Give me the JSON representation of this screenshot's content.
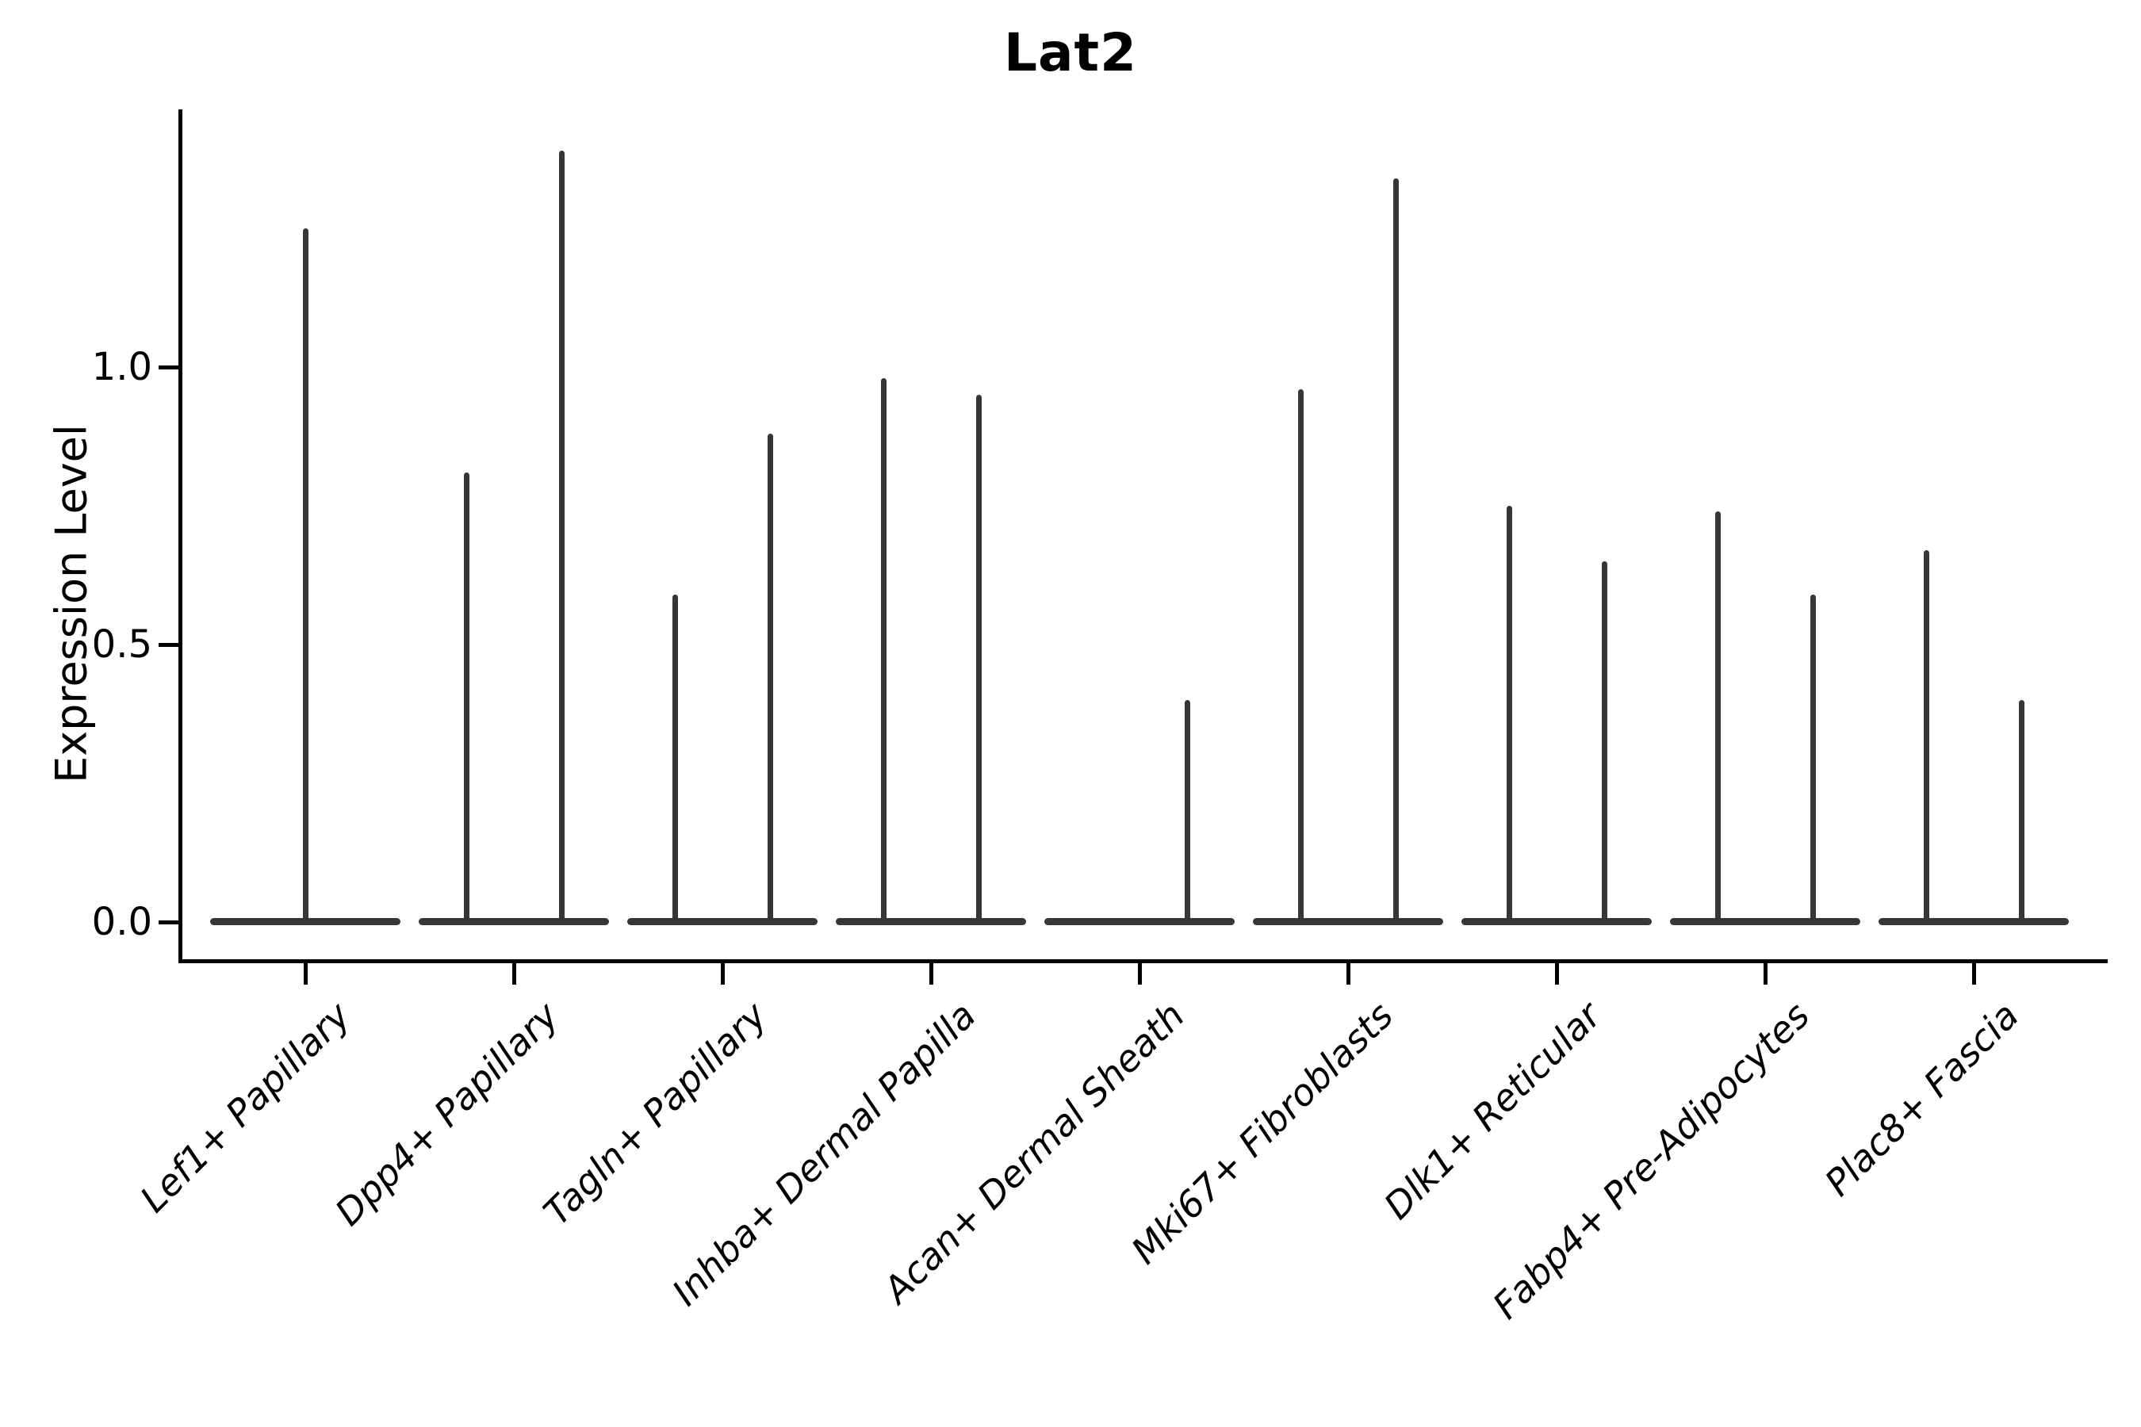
{
  "title": "Lat2",
  "y_axis": {
    "label": "Expression Level",
    "ticks": [
      {
        "label": "1.0",
        "value": 1.0
      },
      {
        "label": "0.5",
        "value": 0.5
      },
      {
        "label": "0.0",
        "value": 0.0
      }
    ]
  },
  "x_axis": {
    "categories": [
      "Lef1+ Papillary",
      "Dpp4+ Papillary",
      "Tagln+ Papillary",
      "Inhba+ Dermal Papilla",
      "Acan+ Dermal Sheath",
      "Mki67+ Fibroblasts",
      "Dlk1+ Reticular",
      "Fabp4+ Pre-Adipocytes",
      "Plac8+ Fascia"
    ]
  },
  "chart_data": {
    "type": "violin",
    "title": "Lat2",
    "xlabel": "",
    "ylabel": "Expression Level",
    "ylim": [
      0,
      1.46
    ],
    "yticks": [
      0.0,
      0.5,
      1.0
    ],
    "grid": false,
    "legend": "none",
    "style": "violins collapse to a wide flat density at 0 with a thin vertical spike up to the maximum expression value; dark gray strokes on white",
    "categories": [
      "Lef1+ Papillary",
      "Dpp4+ Papillary",
      "Tagln+ Papillary",
      "Inhba+ Dermal Papilla",
      "Acan+ Dermal Sheath",
      "Mki67+ Fibroblasts",
      "Dlk1+ Reticular",
      "Fabp4+ Pre-Adipocytes",
      "Plac8+ Fascia"
    ],
    "violins": [
      [
        {
          "position": "center",
          "max_expression": 1.25
        }
      ],
      [
        {
          "position": "left",
          "max_expression": 0.81
        },
        {
          "position": "right",
          "max_expression": 1.39
        }
      ],
      [
        {
          "position": "left",
          "max_expression": 0.59
        },
        {
          "position": "right",
          "max_expression": 0.88
        }
      ],
      [
        {
          "position": "left",
          "max_expression": 0.98
        },
        {
          "position": "right",
          "max_expression": 0.95
        }
      ],
      [
        {
          "position": "right",
          "max_expression": 0.4
        }
      ],
      [
        {
          "position": "left",
          "max_expression": 0.96
        },
        {
          "position": "right",
          "max_expression": 1.34
        }
      ],
      [
        {
          "position": "left",
          "max_expression": 0.75
        },
        {
          "position": "right",
          "max_expression": 0.65
        }
      ],
      [
        {
          "position": "left",
          "max_expression": 0.74
        },
        {
          "position": "right",
          "max_expression": 0.59
        }
      ],
      [
        {
          "position": "left",
          "max_expression": 0.67
        },
        {
          "position": "right",
          "max_expression": 0.4
        }
      ]
    ],
    "colors": {
      "violin_stroke": "#363636",
      "spine": "#000000",
      "text": "#000000",
      "background": "#ffffff"
    }
  }
}
